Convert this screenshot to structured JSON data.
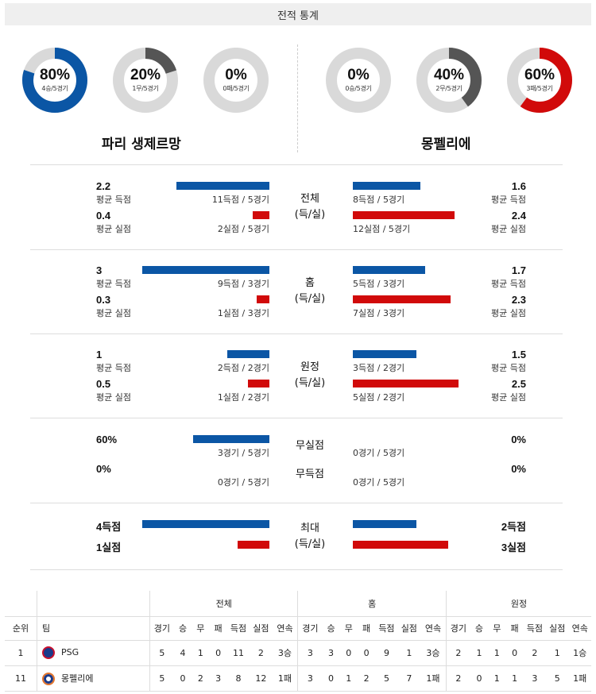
{
  "header": {
    "title": "전적 통계"
  },
  "summary": {
    "home": [
      {
        "pct": "80%",
        "sub": "4승/5경기",
        "fraction": 0.8,
        "color": "#0b56a5"
      },
      {
        "pct": "20%",
        "sub": "1무/5경기",
        "fraction": 0.2,
        "color": "#555555"
      },
      {
        "pct": "0%",
        "sub": "0패/5경기",
        "fraction": 0.0,
        "color": "#d10a0a"
      }
    ],
    "away": [
      {
        "pct": "0%",
        "sub": "0승/5경기",
        "fraction": 0.0,
        "color": "#0b56a5"
      },
      {
        "pct": "40%",
        "sub": "2무/5경기",
        "fraction": 0.4,
        "color": "#555555"
      },
      {
        "pct": "60%",
        "sub": "3패/5경기",
        "fraction": 0.6,
        "color": "#d10a0a"
      }
    ]
  },
  "teams": {
    "home_name": "파리 생제르망",
    "away_name": "몽펠리에"
  },
  "stats": {
    "overall": {
      "cat1": "전체",
      "cat2": "(득/실)",
      "home_for": "2.2",
      "home_for_label": "평균 득점",
      "home_for_note": "11득점 / 5경기",
      "home_against": "0.4",
      "home_against_label": "평균 실점",
      "home_against_note": "2실점 / 5경기",
      "away_for": "1.6",
      "away_for_label": "평균 득점",
      "away_for_note": "8득점 / 5경기",
      "away_against": "2.4",
      "away_against_label": "평균 실점",
      "away_against_note": "12실점 / 5경기"
    },
    "home": {
      "cat1": "홈",
      "cat2": "(득/실)",
      "home_for": "3",
      "home_for_label": "평균 득점",
      "home_for_note": "9득점 / 3경기",
      "home_against": "0.3",
      "home_against_label": "평균 실점",
      "home_against_note": "1실점 / 3경기",
      "away_for": "1.7",
      "away_for_label": "평균 득점",
      "away_for_note": "5득점 / 3경기",
      "away_against": "2.3",
      "away_against_label": "평균 실점",
      "away_against_note": "7실점 / 3경기"
    },
    "away": {
      "cat1": "원정",
      "cat2": "(득/실)",
      "home_for": "1",
      "home_for_label": "평균 득점",
      "home_for_note": "2득점 / 2경기",
      "home_against": "0.5",
      "home_against_label": "평균 실점",
      "home_against_note": "1실점 / 2경기",
      "away_for": "1.5",
      "away_for_label": "평균 득점",
      "away_for_note": "3득점 / 2경기",
      "away_against": "2.5",
      "away_against_label": "평균 실점",
      "away_against_note": "5실점 / 2경기"
    },
    "clean": {
      "cat_a": "무실점",
      "cat_b": "무득점",
      "home_clean": "60%",
      "home_clean_note": "3경기 / 5경기",
      "home_noscore": "0%",
      "home_noscore_note": "0경기 / 5경기",
      "away_clean": "0%",
      "away_clean_note": "0경기 / 5경기",
      "away_noscore": "0%",
      "away_noscore_note": "0경기 / 5경기"
    },
    "max": {
      "cat1": "최대",
      "cat2": "(득/실)",
      "home_for": "4득점",
      "home_against": "1실점",
      "away_for": "2득점",
      "away_against": "3실점"
    }
  },
  "standings": {
    "groups": [
      "전체",
      "홈",
      "원정"
    ],
    "headers": {
      "rank": "순위",
      "team": "팀"
    },
    "cols": [
      "경기",
      "승",
      "무",
      "패",
      "득점",
      "실점",
      "연속"
    ],
    "rows": [
      {
        "rank": "1",
        "team": "PSG",
        "overall": [
          "5",
          "4",
          "1",
          "0",
          "11",
          "2",
          "3승"
        ],
        "home": [
          "3",
          "3",
          "0",
          "0",
          "9",
          "1",
          "3승"
        ],
        "away": [
          "2",
          "1",
          "1",
          "0",
          "2",
          "1",
          "1승"
        ]
      },
      {
        "rank": "11",
        "team": "몽펠리에",
        "overall": [
          "5",
          "0",
          "2",
          "3",
          "8",
          "12",
          "1패"
        ],
        "home": [
          "3",
          "0",
          "1",
          "2",
          "5",
          "7",
          "1패"
        ],
        "away": [
          "2",
          "0",
          "1",
          "1",
          "3",
          "5",
          "1패"
        ]
      }
    ]
  }
}
